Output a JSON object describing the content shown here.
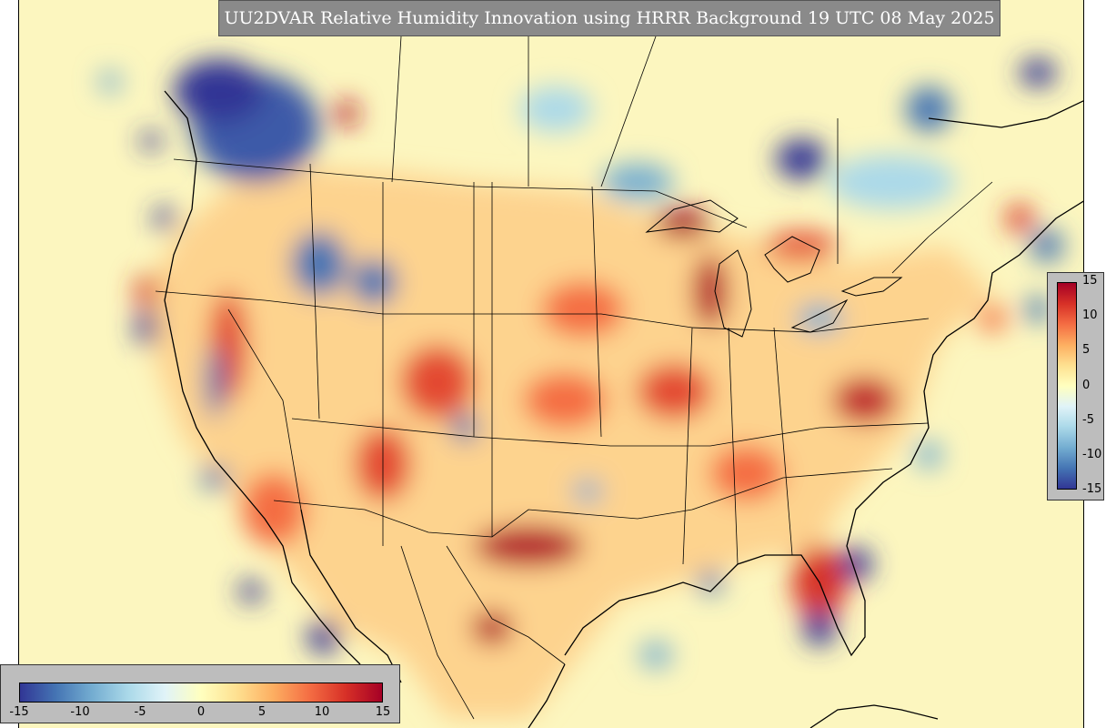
{
  "title": "UU2DVAR Relative Humidity Innovation using HRRR Background 19 UTC 08 May 2025",
  "variable": "Relative Humidity Innovation",
  "colorbar": {
    "min": -15,
    "max": 15,
    "right_ticks": [
      "15",
      "10",
      "5",
      "0",
      "-5",
      "-10",
      "-15"
    ],
    "bottom_ticks": [
      "-15",
      "-10",
      "-5",
      "0",
      "5",
      "10",
      "15"
    ],
    "colors": [
      "#313695",
      "#4575b4",
      "#74add1",
      "#abd9e9",
      "#e0f3f8",
      "#ffffbf",
      "#fee090",
      "#fdae61",
      "#f46d43",
      "#d73027",
      "#a50026"
    ]
  },
  "map": {
    "background_color": "#fcf6bf",
    "border_color": "#000000"
  }
}
